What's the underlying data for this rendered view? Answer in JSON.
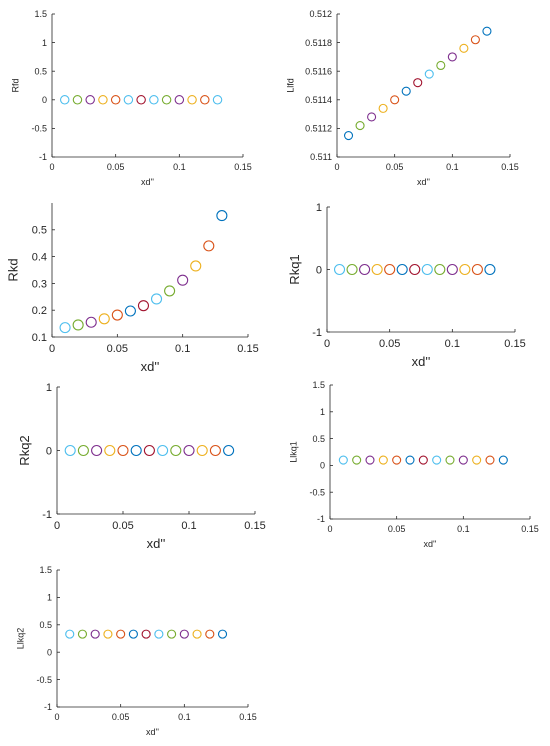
{
  "colors": [
    "#4dbeee",
    "#77ac30",
    "#7e2f8e",
    "#edb120",
    "#d95319",
    "#0072bd",
    "#a2142f"
  ],
  "chart_data": [
    {
      "type": "scatter",
      "xlabel": "xd''",
      "ylabel": "Rfd",
      "xlim": [
        0,
        0.15
      ],
      "ylim": [
        -1,
        1.5
      ],
      "xticks": [
        0,
        0.05,
        0.1,
        0.15
      ],
      "xticklabels": [
        "0",
        "0.05",
        "0.1",
        "0.15"
      ],
      "yticks": [
        -1,
        -0.5,
        0,
        0.5,
        1,
        1.5
      ],
      "yticklabels": [
        "-1",
        "-0.5",
        "0",
        "0.5",
        "1",
        "1.5"
      ],
      "x": [
        0.01,
        0.02,
        0.03,
        0.04,
        0.05,
        0.06,
        0.07,
        0.08,
        0.09,
        0.1,
        0.11,
        0.12,
        0.13
      ],
      "y": [
        0,
        0,
        0,
        0,
        0,
        0,
        0,
        0,
        0,
        0,
        0,
        0,
        0
      ],
      "colors": [
        "#4dbeee",
        "#77ac30",
        "#7e2f8e",
        "#edb120",
        "#d95319",
        "#4dbeee",
        "#a2142f",
        "#4dbeee",
        "#77ac30",
        "#7e2f8e",
        "#edb120",
        "#d95319",
        "#4dbeee"
      ]
    },
    {
      "type": "scatter",
      "xlabel": "xd''",
      "ylabel": "Llfd",
      "xlim": [
        0,
        0.15
      ],
      "ylim": [
        0.511,
        0.512
      ],
      "xticks": [
        0,
        0.05,
        0.1,
        0.15
      ],
      "xticklabels": [
        "0",
        "0.05",
        "0.1",
        "0.15"
      ],
      "yticks": [
        0.511,
        0.5112,
        0.5114,
        0.5116,
        0.5118,
        0.512
      ],
      "yticklabels": [
        "0.511",
        "0.5112",
        "0.5114",
        "0.5116",
        "0.5118",
        "0.512"
      ],
      "x": [
        0.01,
        0.02,
        0.03,
        0.04,
        0.05,
        0.06,
        0.07,
        0.08,
        0.09,
        0.1,
        0.11,
        0.12,
        0.13
      ],
      "y": [
        0.51115,
        0.51122,
        0.51128,
        0.51134,
        0.5114,
        0.51146,
        0.51152,
        0.51158,
        0.51164,
        0.5117,
        0.51176,
        0.51182,
        0.51188
      ],
      "colors": [
        "#0072bd",
        "#77ac30",
        "#7e2f8e",
        "#edb120",
        "#d95319",
        "#0072bd",
        "#a2142f",
        "#4dbeee",
        "#77ac30",
        "#7e2f8e",
        "#edb120",
        "#d95319",
        "#0072bd"
      ]
    },
    {
      "type": "scatter",
      "xlabel": "xd''",
      "ylabel": "Rkd",
      "xlim": [
        0,
        0.15
      ],
      "ylim": [
        0.1,
        0.6
      ],
      "xticks": [
        0,
        0.05,
        0.1,
        0.15
      ],
      "xticklabels": [
        "0",
        "0.05",
        "0.1",
        "0.15"
      ],
      "yticks": [
        0.1,
        0.2,
        0.3,
        0.4,
        0.5
      ],
      "yticklabels": [
        "0.1",
        "0.2",
        "0.3",
        "0.4",
        "0.5"
      ],
      "x": [
        0.01,
        0.02,
        0.03,
        0.04,
        0.05,
        0.06,
        0.07,
        0.08,
        0.09,
        0.1,
        0.11,
        0.12,
        0.13
      ],
      "y": [
        0.135,
        0.145,
        0.155,
        0.168,
        0.182,
        0.197,
        0.217,
        0.242,
        0.272,
        0.312,
        0.365,
        0.44,
        0.553
      ],
      "colors": [
        "#4dbeee",
        "#77ac30",
        "#7e2f8e",
        "#edb120",
        "#d95319",
        "#0072bd",
        "#a2142f",
        "#4dbeee",
        "#77ac30",
        "#7e2f8e",
        "#edb120",
        "#d95319",
        "#0072bd"
      ]
    },
    {
      "type": "scatter",
      "xlabel": "xd''",
      "ylabel": "Rkq1",
      "xlim": [
        0,
        0.15
      ],
      "ylim": [
        -1,
        1
      ],
      "xticks": [
        0,
        0.05,
        0.1,
        0.15
      ],
      "xticklabels": [
        "0",
        "0.05",
        "0.1",
        "0.15"
      ],
      "yticks": [
        -1,
        0,
        1
      ],
      "yticklabels": [
        "-1",
        "0",
        "1"
      ],
      "x": [
        0.01,
        0.02,
        0.03,
        0.04,
        0.05,
        0.06,
        0.07,
        0.08,
        0.09,
        0.1,
        0.11,
        0.12,
        0.13
      ],
      "y": [
        0,
        0,
        0,
        0,
        0,
        0,
        0,
        0,
        0,
        0,
        0,
        0,
        0
      ],
      "colors": [
        "#4dbeee",
        "#77ac30",
        "#7e2f8e",
        "#edb120",
        "#d95319",
        "#0072bd",
        "#a2142f",
        "#4dbeee",
        "#77ac30",
        "#7e2f8e",
        "#edb120",
        "#d95319",
        "#0072bd"
      ]
    },
    {
      "type": "scatter",
      "xlabel": "xd''",
      "ylabel": "Rkq2",
      "xlim": [
        0,
        0.15
      ],
      "ylim": [
        -1,
        1
      ],
      "xticks": [
        0,
        0.05,
        0.1,
        0.15
      ],
      "xticklabels": [
        "0",
        "0.05",
        "0.1",
        "0.15"
      ],
      "yticks": [
        -1,
        0,
        1
      ],
      "yticklabels": [
        "-1",
        "0",
        "1"
      ],
      "x": [
        0.01,
        0.02,
        0.03,
        0.04,
        0.05,
        0.06,
        0.07,
        0.08,
        0.09,
        0.1,
        0.11,
        0.12,
        0.13
      ],
      "y": [
        0,
        0,
        0,
        0,
        0,
        0,
        0,
        0,
        0,
        0,
        0,
        0,
        0
      ],
      "colors": [
        "#4dbeee",
        "#77ac30",
        "#7e2f8e",
        "#edb120",
        "#d95319",
        "#0072bd",
        "#a2142f",
        "#4dbeee",
        "#77ac30",
        "#7e2f8e",
        "#edb120",
        "#d95319",
        "#0072bd"
      ]
    },
    {
      "type": "scatter",
      "xlabel": "xd''",
      "ylabel": "Llkq1",
      "xlim": [
        0,
        0.15
      ],
      "ylim": [
        -1,
        1.5
      ],
      "xticks": [
        0,
        0.05,
        0.1,
        0.15
      ],
      "xticklabels": [
        "0",
        "0.05",
        "0.1",
        "0.15"
      ],
      "yticks": [
        -1,
        -0.5,
        0,
        0.5,
        1,
        1.5
      ],
      "yticklabels": [
        "-1",
        "-0.5",
        "0",
        "0.5",
        "1",
        "1.5"
      ],
      "x": [
        0.01,
        0.02,
        0.03,
        0.04,
        0.05,
        0.06,
        0.07,
        0.08,
        0.09,
        0.1,
        0.11,
        0.12,
        0.13
      ],
      "y": [
        0.1,
        0.1,
        0.1,
        0.1,
        0.1,
        0.1,
        0.1,
        0.1,
        0.1,
        0.1,
        0.1,
        0.1,
        0.1
      ],
      "colors": [
        "#4dbeee",
        "#77ac30",
        "#7e2f8e",
        "#edb120",
        "#d95319",
        "#0072bd",
        "#a2142f",
        "#4dbeee",
        "#77ac30",
        "#7e2f8e",
        "#edb120",
        "#d95319",
        "#0072bd"
      ]
    },
    {
      "type": "scatter",
      "xlabel": "xd''",
      "ylabel": "Llkq2",
      "xlim": [
        0,
        0.15
      ],
      "ylim": [
        -1,
        1.5
      ],
      "xticks": [
        0,
        0.05,
        0.1,
        0.15
      ],
      "xticklabels": [
        "0",
        "0.05",
        "0.1",
        "0.15"
      ],
      "yticks": [
        -1,
        -0.5,
        0,
        0.5,
        1,
        1.5
      ],
      "yticklabels": [
        "-1",
        "-0.5",
        "0",
        "0.5",
        "1",
        "1.5"
      ],
      "x": [
        0.01,
        0.02,
        0.03,
        0.04,
        0.05,
        0.06,
        0.07,
        0.08,
        0.09,
        0.1,
        0.11,
        0.12,
        0.13
      ],
      "y": [
        0.33,
        0.33,
        0.33,
        0.33,
        0.33,
        0.33,
        0.33,
        0.33,
        0.33,
        0.33,
        0.33,
        0.33,
        0.33
      ],
      "colors": [
        "#4dbeee",
        "#77ac30",
        "#7e2f8e",
        "#edb120",
        "#d95319",
        "#0072bd",
        "#a2142f",
        "#4dbeee",
        "#77ac30",
        "#7e2f8e",
        "#edb120",
        "#d95319",
        "#0072bd"
      ]
    }
  ]
}
